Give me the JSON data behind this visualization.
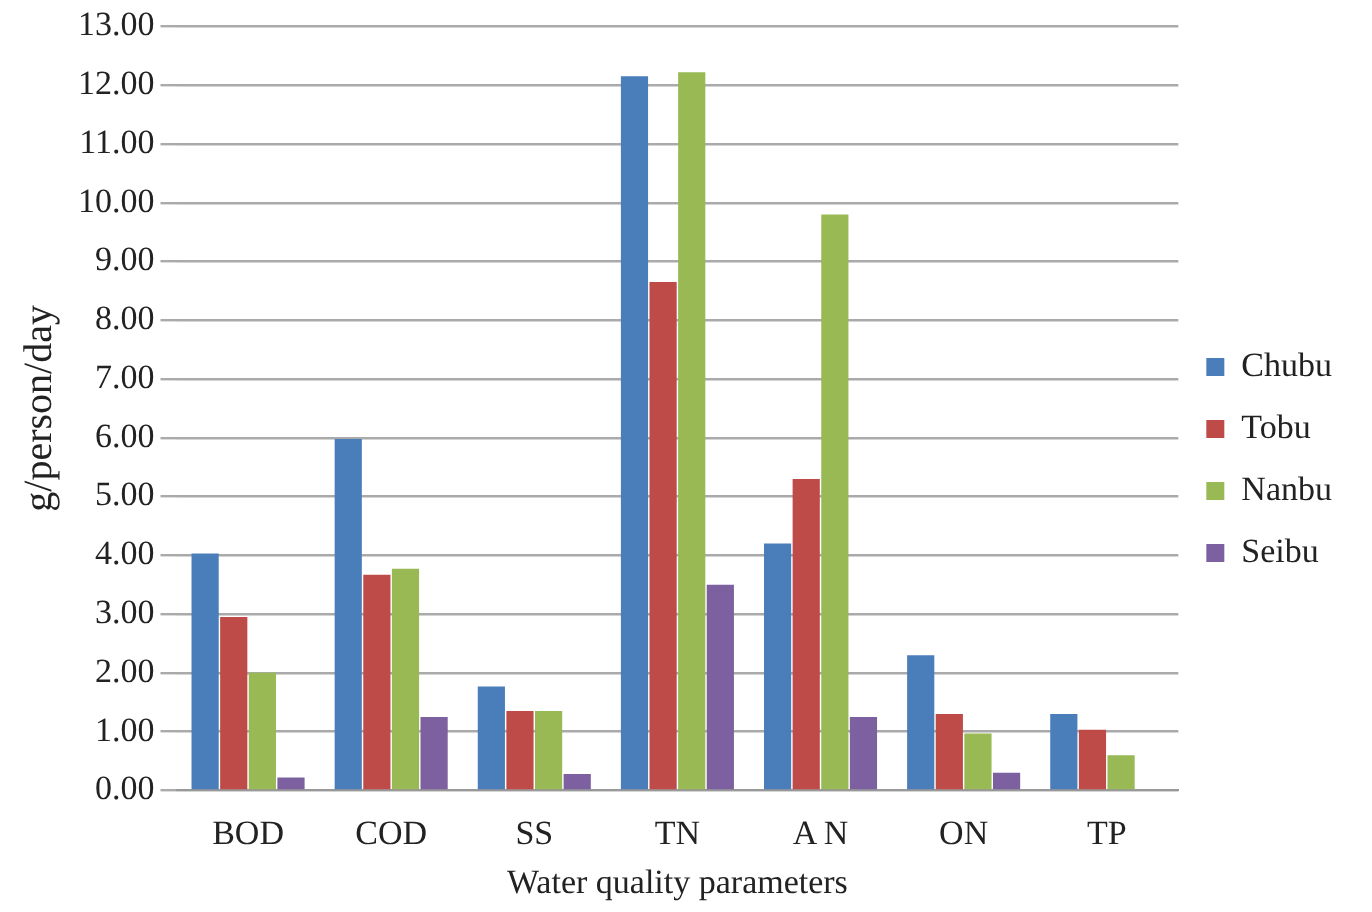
{
  "chart_data": {
    "type": "bar",
    "xlabel": "Water quality parameters",
    "ylabel": "g/person/day",
    "categories": [
      "BOD",
      "COD",
      "SS",
      "TN",
      "A N",
      "ON",
      "TP"
    ],
    "series": [
      {
        "name": "Chubu",
        "color": "#4a7ebb",
        "values": [
          4.03,
          5.98,
          1.77,
          12.15,
          4.2,
          2.3,
          1.3
        ]
      },
      {
        "name": "Tobu",
        "color": "#be4b48",
        "values": [
          2.95,
          3.67,
          1.35,
          8.65,
          5.3,
          1.3,
          1.03
        ]
      },
      {
        "name": "Nanbu",
        "color": "#98b954",
        "values": [
          2.0,
          3.77,
          1.35,
          12.22,
          9.8,
          0.97,
          0.6
        ]
      },
      {
        "name": "Seibu",
        "color": "#7d60a0",
        "values": [
          0.22,
          1.25,
          0.28,
          3.5,
          1.25,
          0.3,
          null
        ]
      }
    ],
    "ylim": [
      0,
      13
    ],
    "yticks": [
      {
        "value": 0,
        "label": "0.00"
      },
      {
        "value": 1,
        "label": "1.00"
      },
      {
        "value": 2,
        "label": "2.00"
      },
      {
        "value": 3,
        "label": "3.00"
      },
      {
        "value": 4,
        "label": "4.00"
      },
      {
        "value": 5,
        "label": "5.00"
      },
      {
        "value": 6,
        "label": "6.00"
      },
      {
        "value": 7,
        "label": "7.00"
      },
      {
        "value": 8,
        "label": "8.00"
      },
      {
        "value": 9,
        "label": "9.00"
      },
      {
        "value": 10,
        "label": "10.00"
      },
      {
        "value": 11,
        "label": "11.00"
      },
      {
        "value": 12,
        "label": "12.00"
      },
      {
        "value": 13,
        "label": "13.00"
      }
    ],
    "grid": "y",
    "legend": "right"
  }
}
